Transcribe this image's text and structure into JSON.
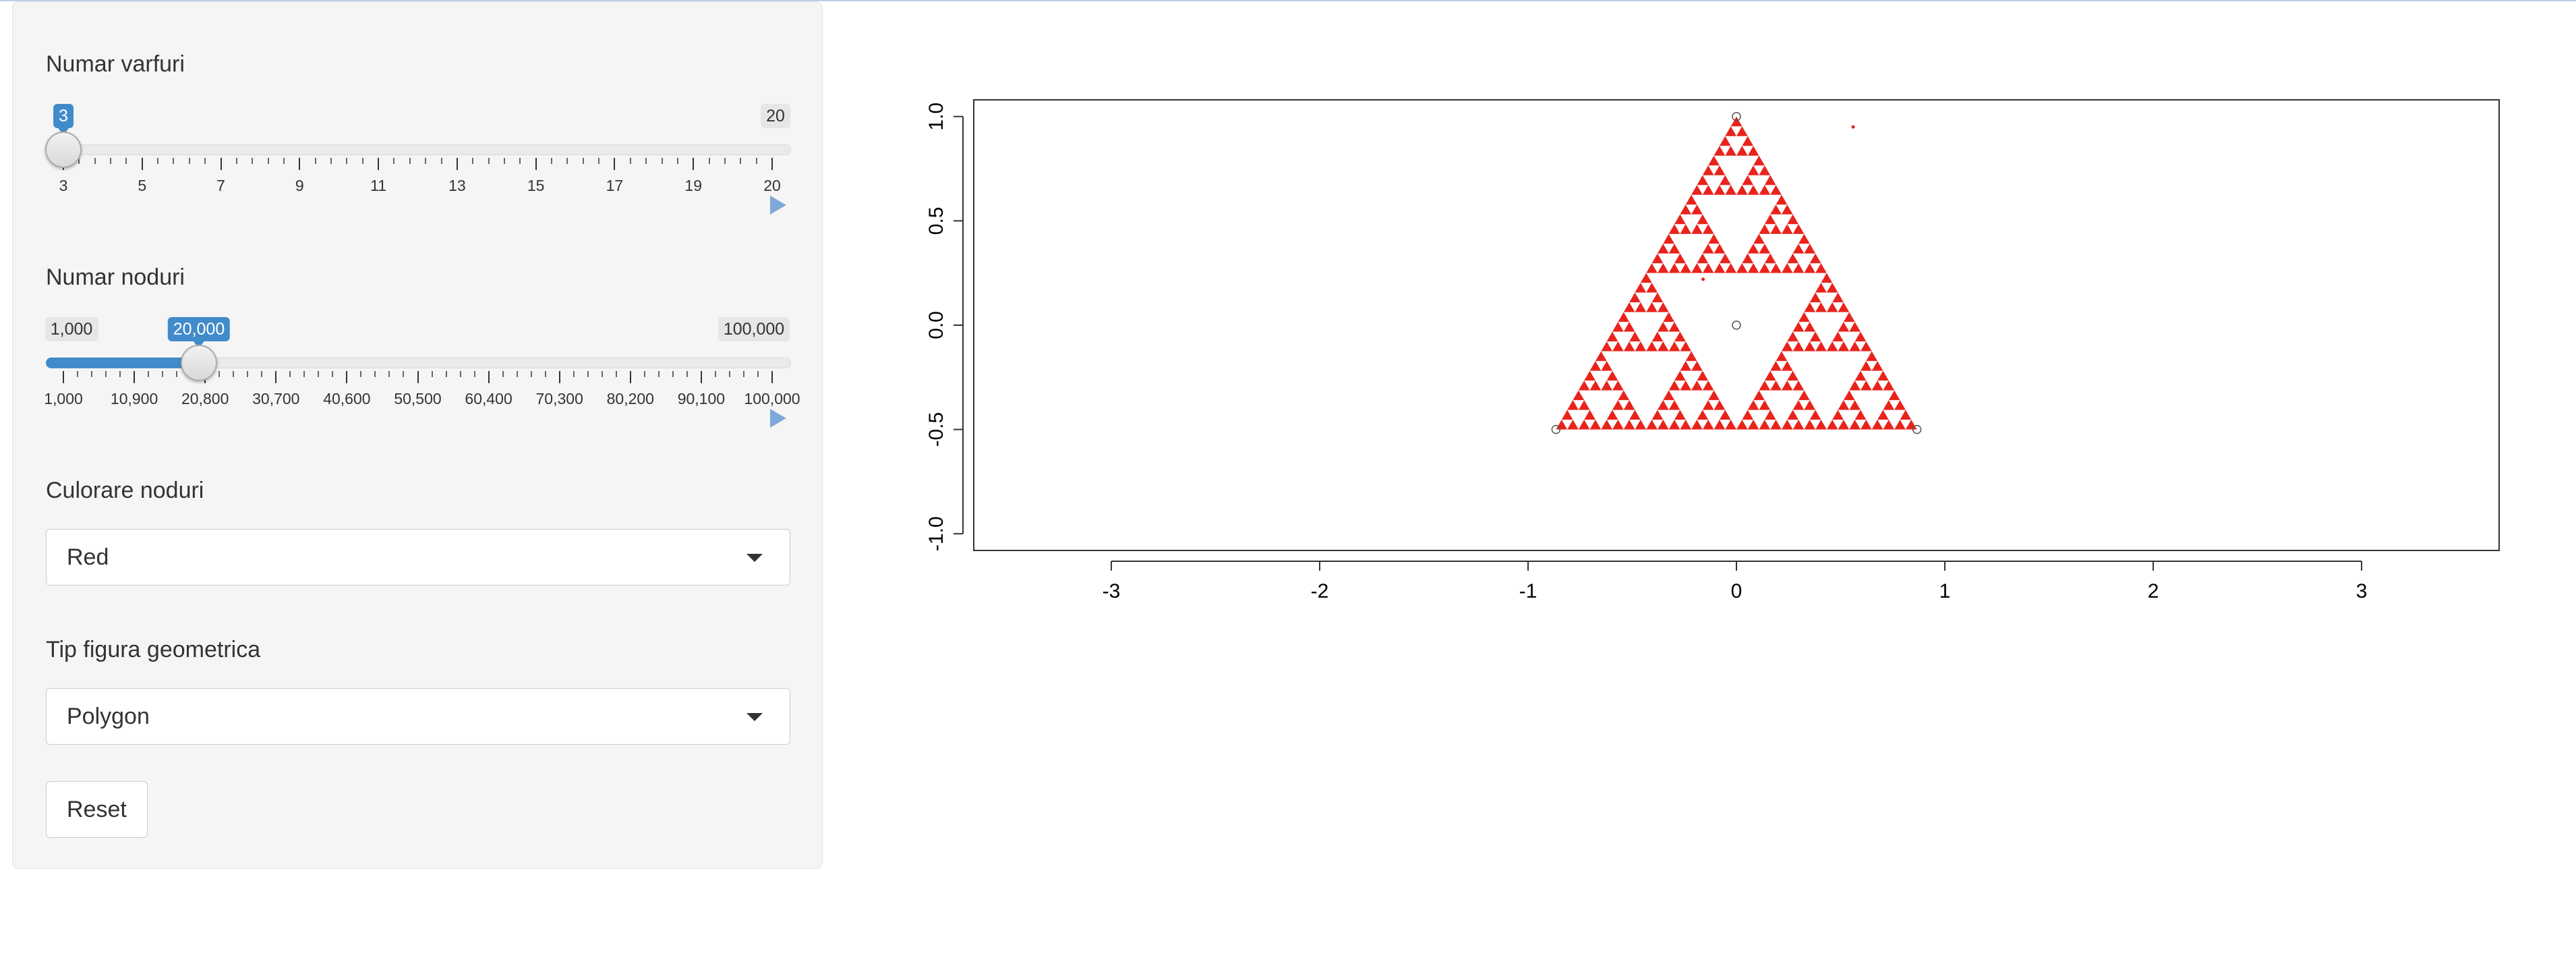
{
  "sidebar": {
    "vertices_slider": {
      "label": "Numar varfuri",
      "min": 3,
      "max": 20,
      "value": 3,
      "min_label": "3",
      "max_label": "20",
      "value_label": "3",
      "ticks": [
        "3",
        "5",
        "7",
        "9",
        "11",
        "13",
        "15",
        "17",
        "19",
        "20"
      ]
    },
    "nodes_slider": {
      "label": "Numar noduri",
      "min": 1000,
      "max": 100000,
      "value": 20000,
      "min_label": "1,000",
      "max_label": "100,000",
      "value_label": "20,000",
      "ticks": [
        "1,000",
        "10,900",
        "20,800",
        "30,700",
        "40,600",
        "50,500",
        "60,400",
        "70,300",
        "80,200",
        "90,100",
        "100,000"
      ]
    },
    "color_select": {
      "label": "Culorare noduri",
      "value": "Red"
    },
    "shape_select": {
      "label": "Tip figura geometrica",
      "value": "Polygon"
    },
    "reset_label": "Reset"
  },
  "chart_data": {
    "type": "scatter",
    "title": "",
    "xlabel": "",
    "ylabel": "",
    "xlim": [
      -3.66,
      3.66
    ],
    "ylim": [
      -1.08,
      1.08
    ],
    "x_ticks": [
      -3,
      -2,
      -1,
      0,
      1,
      2,
      3
    ],
    "y_ticks": [
      -1.0,
      -0.5,
      0.0,
      0.5,
      1.0
    ],
    "x_tick_labels": [
      "-3",
      "-2",
      "-1",
      "0",
      "1",
      "2",
      "3"
    ],
    "y_tick_labels": [
      "-1.0",
      "-0.5",
      "0.0",
      "0.5",
      "1.0"
    ],
    "vertices": [
      [
        0,
        1
      ],
      [
        -0.866,
        -0.5
      ],
      [
        0.866,
        -0.5
      ]
    ],
    "center": [
      0,
      0
    ],
    "point_color": "#e8231c",
    "sierpinski_depth": 5,
    "stray_points": [
      [
        0.56,
        0.95
      ],
      [
        -0.16,
        0.22
      ]
    ]
  }
}
